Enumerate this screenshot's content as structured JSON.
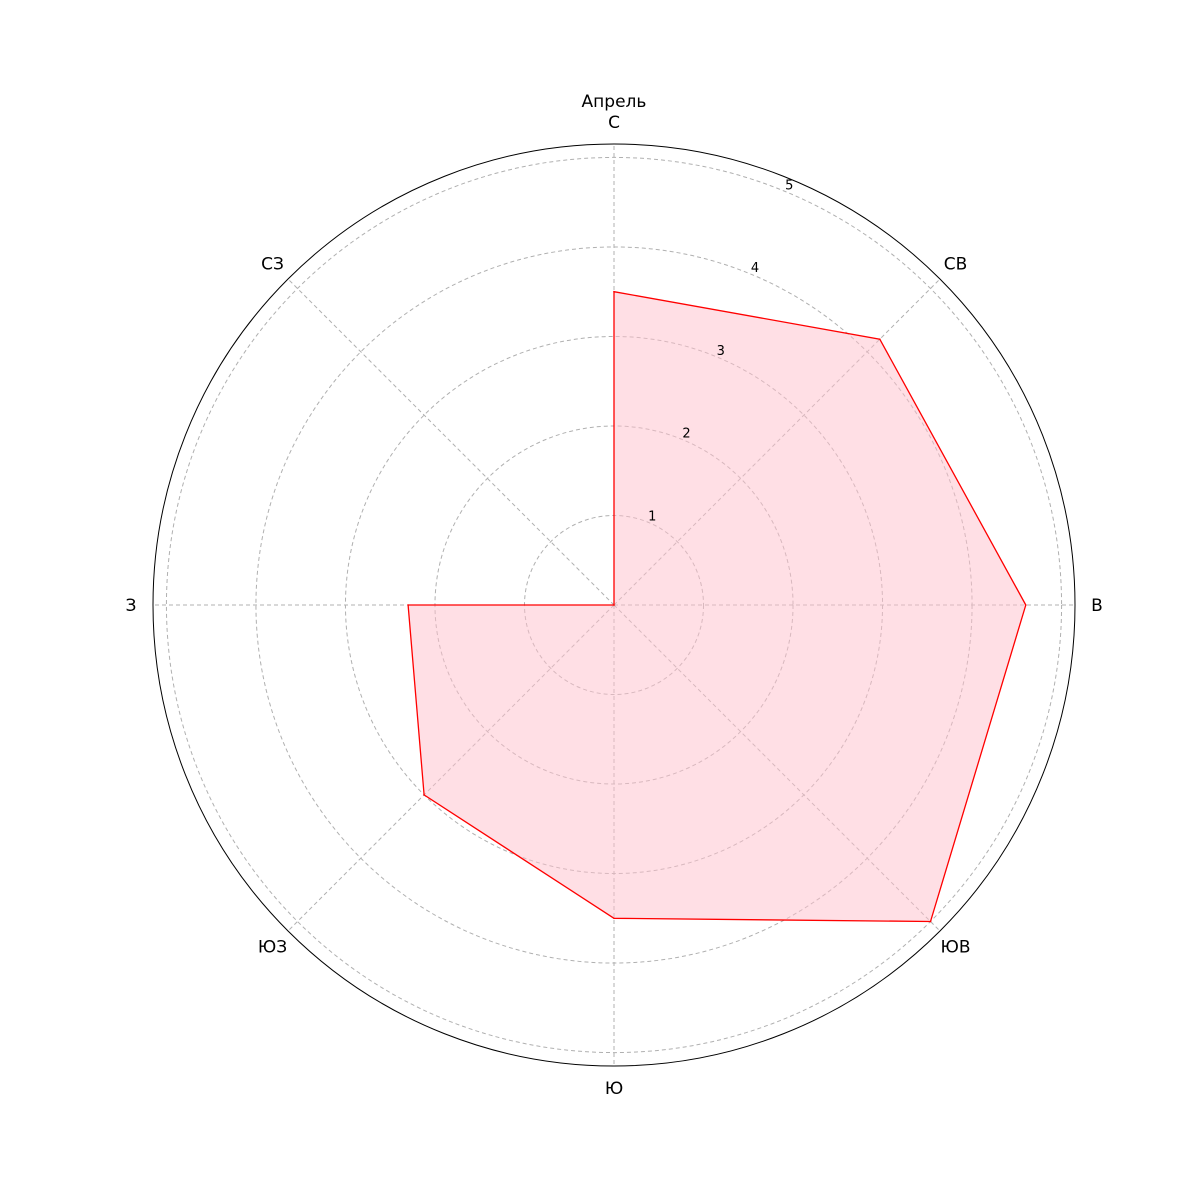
{
  "chart_data": {
    "type": "radar",
    "title": "Апрель",
    "categories": [
      "С",
      "СВ",
      "В",
      "ЮВ",
      "Ю",
      "ЮЗ",
      "З",
      "СЗ"
    ],
    "series": [
      {
        "values": [
          3.5,
          4.2,
          4.6,
          5.0,
          3.5,
          3.0,
          2.3,
          0.0
        ]
      }
    ],
    "rlim": [
      0,
      5.15
    ],
    "rticks": [
      1,
      2,
      3,
      4,
      5
    ],
    "grid": true,
    "colors": {
      "line": "#ff0000",
      "fill": "#ffc0cb"
    }
  }
}
